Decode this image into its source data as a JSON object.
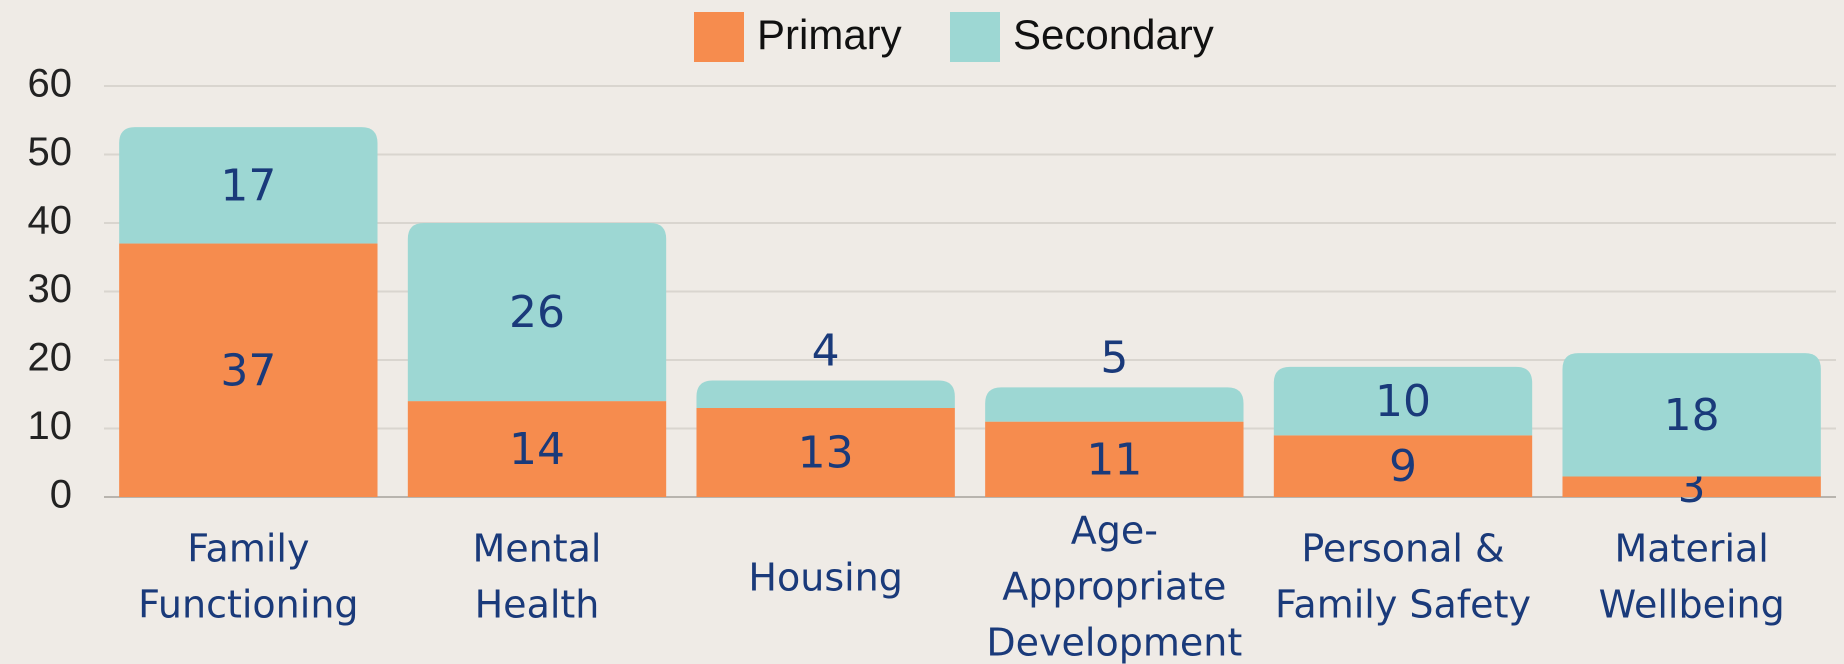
{
  "chart_data": {
    "type": "stacked_bar",
    "categories": [
      [
        "Family",
        "Functioning"
      ],
      [
        "Mental",
        "Health"
      ],
      [
        "Housing"
      ],
      [
        "Age-",
        "Appropriate",
        "Development"
      ],
      [
        "Personal &",
        "Family Safety"
      ],
      [
        "Material",
        "Wellbeing"
      ]
    ],
    "series": [
      {
        "name": "Primary",
        "color": "#f68c4e",
        "values": [
          37,
          14,
          13,
          11,
          9,
          3
        ]
      },
      {
        "name": "Secondary",
        "color": "#9dd7d3",
        "values": [
          17,
          26,
          4,
          5,
          10,
          18
        ]
      }
    ],
    "ylim": [
      0,
      60
    ],
    "yticks": [
      0,
      10,
      20,
      30,
      40,
      50,
      60
    ],
    "grid": true,
    "legend": "top"
  }
}
